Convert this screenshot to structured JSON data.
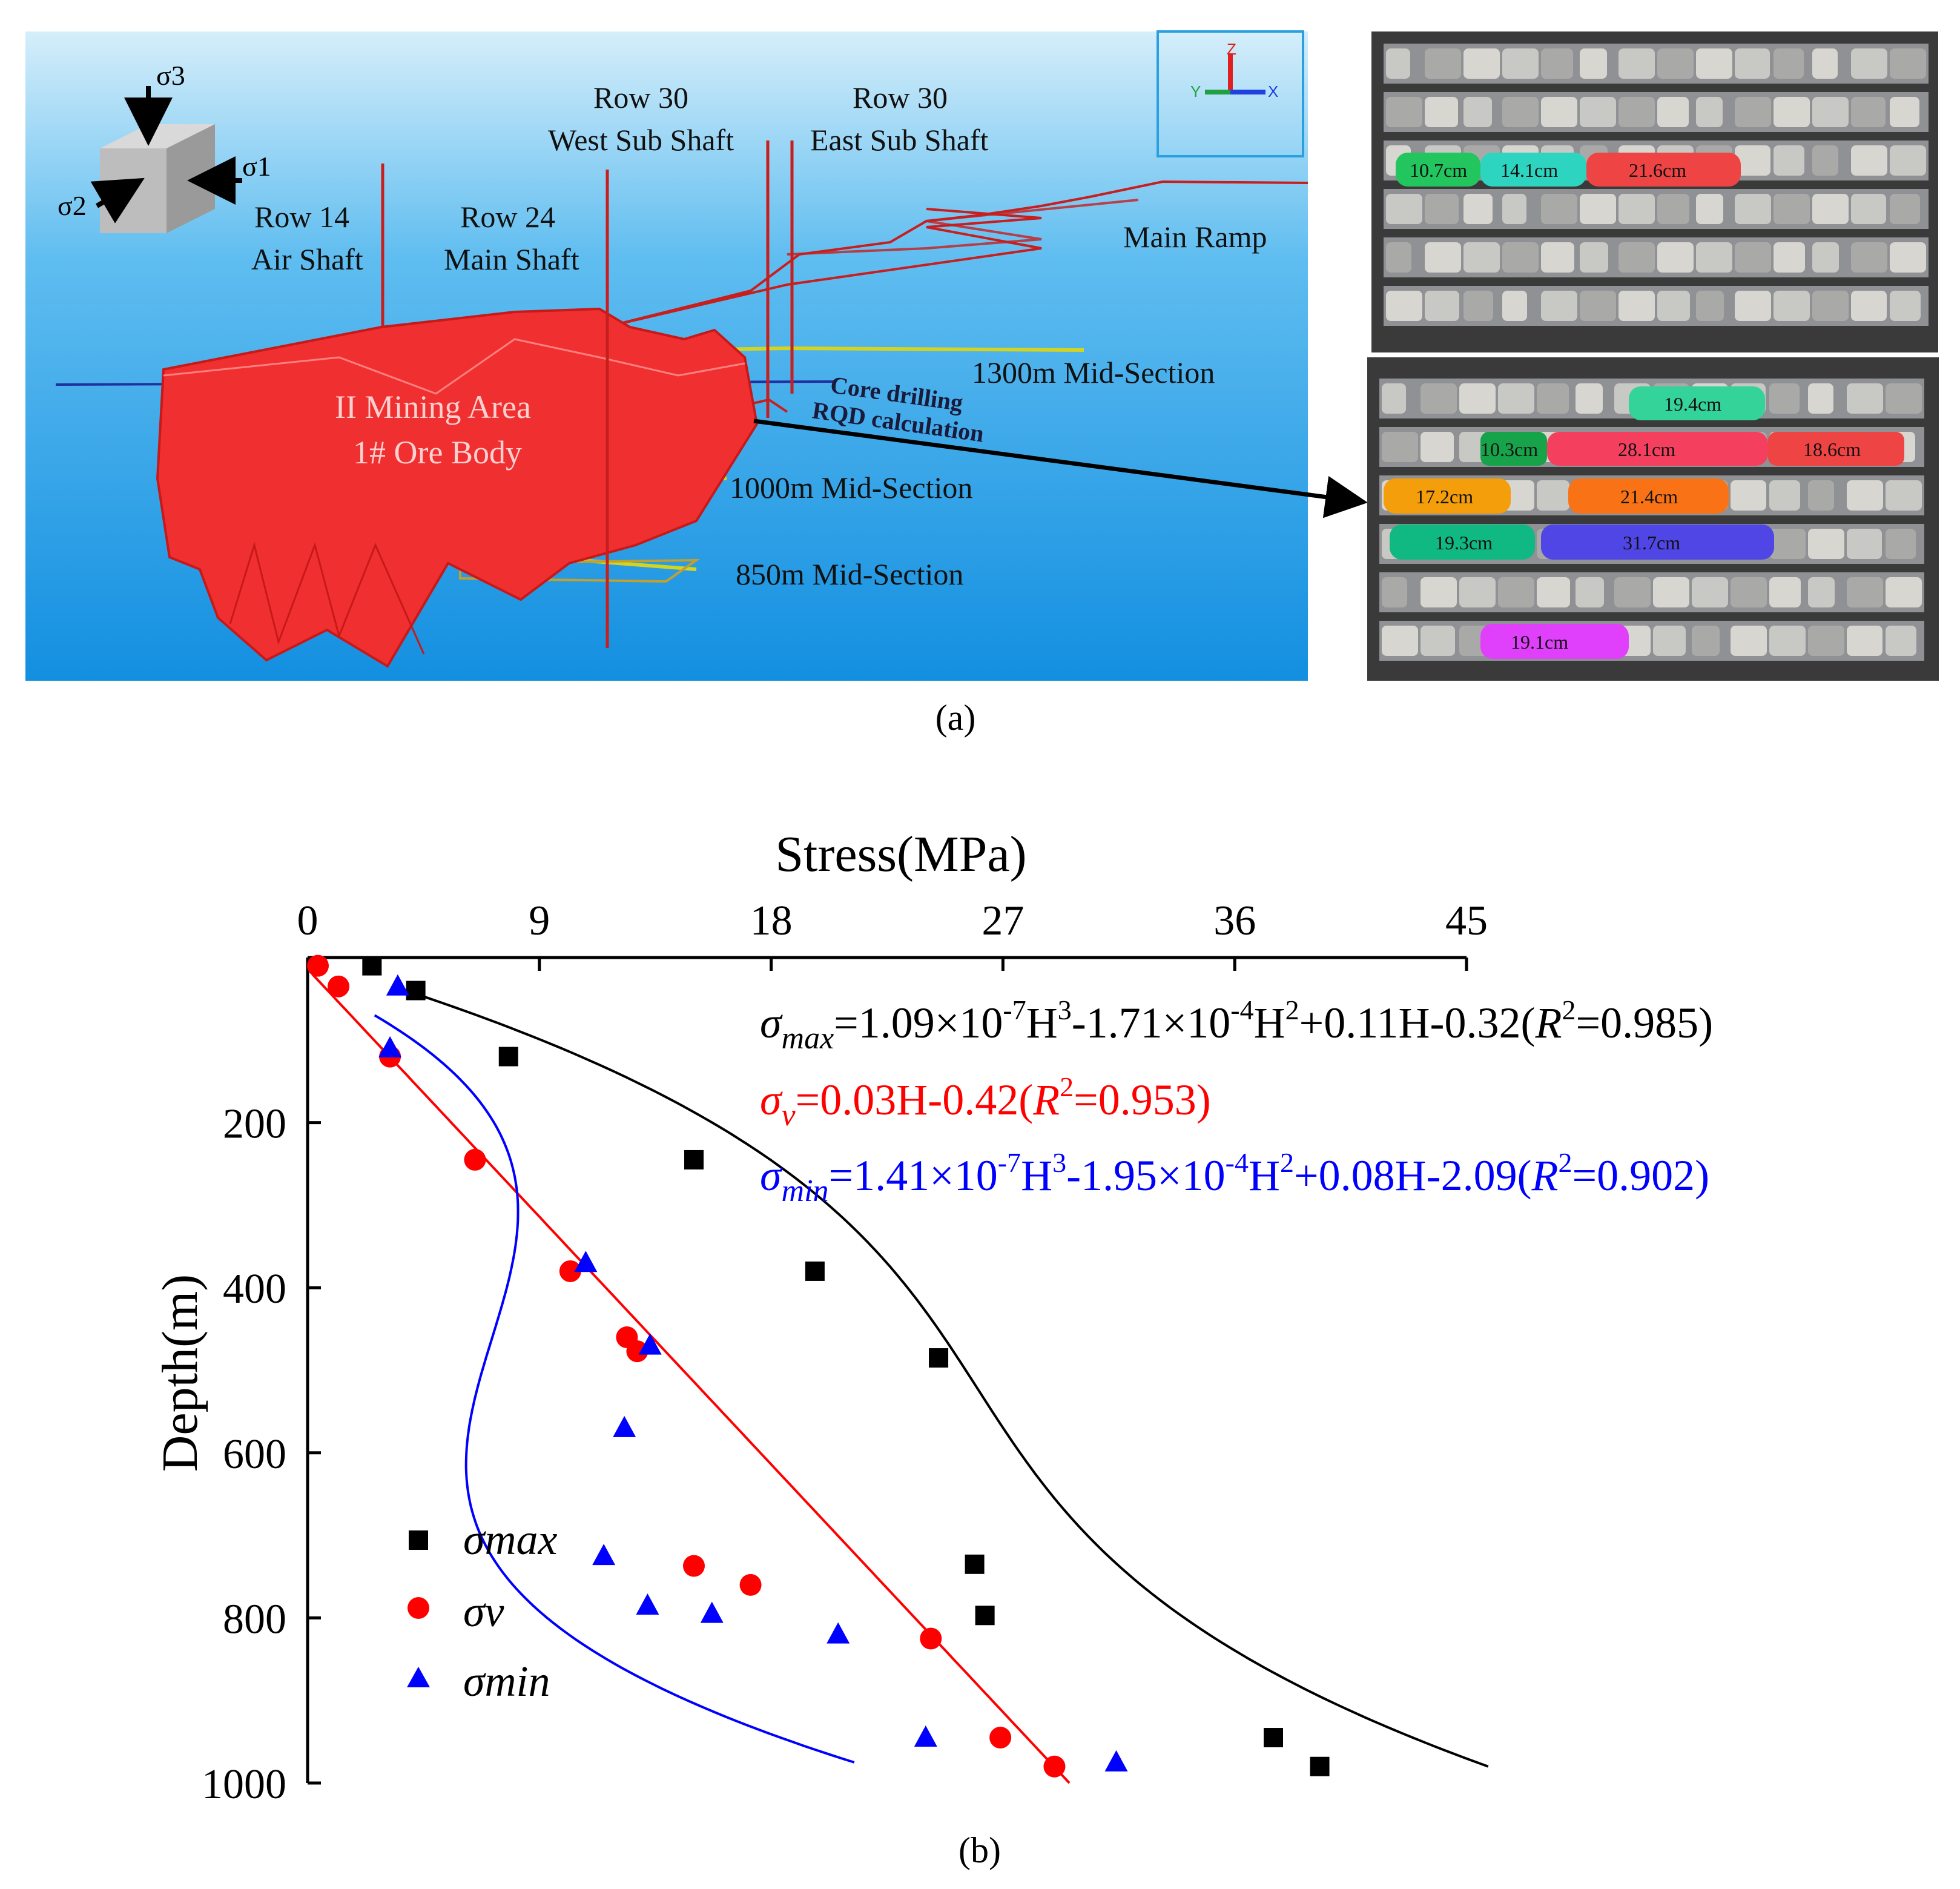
{
  "panel_a": {
    "caption": "(a)",
    "stress_cube": {
      "sigma1": "σ1",
      "sigma2": "σ2",
      "sigma3": "σ3"
    },
    "labels": {
      "row14": [
        "Row 14",
        "Air Shaft"
      ],
      "row24": [
        "Row 24",
        "Main Shaft"
      ],
      "row30w": [
        "Row 30",
        "West Sub Shaft"
      ],
      "row30e": [
        "Row 30",
        "East Sub Shaft"
      ],
      "main_ramp": "Main Ramp",
      "mid1300": "1300m Mid-Section",
      "mid1000": "1000m Mid-Section",
      "mid850": "850m Mid-Section",
      "ore_body": [
        "II Mining Area",
        "1# Ore Body"
      ],
      "core_drilling": "Core drilling",
      "rqd_calc": "RQD calculation"
    },
    "axes_widget": {
      "z": "Z",
      "y": "Y",
      "x": "X"
    },
    "core_box_top": [
      {
        "label": "10.7cm",
        "color": "#22c55e"
      },
      {
        "label": "14.1cm",
        "color": "#2dd4bf"
      },
      {
        "label": "21.6cm",
        "color": "#ef4444"
      }
    ],
    "core_box_bottom": [
      {
        "label": "19.4cm",
        "color": "#34d399"
      },
      {
        "label": "10.3cm",
        "color": "#16a34a"
      },
      {
        "label": "28.1cm",
        "color": "#f43f5e"
      },
      {
        "label": "18.6cm",
        "color": "#ef4444"
      },
      {
        "label": "17.2cm",
        "color": "#f59e0b"
      },
      {
        "label": "21.4cm",
        "color": "#f97316"
      },
      {
        "label": "19.3cm",
        "color": "#10b981"
      },
      {
        "label": "31.7cm",
        "color": "#4f46e5"
      },
      {
        "label": "19.1cm",
        "color": "#e040fb"
      }
    ]
  },
  "panel_b": {
    "caption": "(b)"
  },
  "colors": {
    "sky": "#1e9be8",
    "ore": "#f03030",
    "max": "#000000",
    "v": "#ff0000",
    "min": "#0000ff",
    "shaft": "#c81e1e",
    "box": "#3a3a3a"
  },
  "chart_data": {
    "type": "scatter",
    "title": "",
    "xlabel": "Stress(MPa)",
    "ylabel": "Depth(m)",
    "xlim": [
      0,
      45
    ],
    "ylim": [
      1000,
      0
    ],
    "x_ticks": [
      "0",
      "9",
      "18",
      "27",
      "36",
      "45"
    ],
    "y_ticks": [
      "200",
      "400",
      "600",
      "800",
      "1000"
    ],
    "legend_position": "bottom-left",
    "series": [
      {
        "name": "σmax",
        "marker": "square",
        "color": "#000000",
        "points": [
          [
            2.5,
            10
          ],
          [
            4.2,
            40
          ],
          [
            7.8,
            120
          ],
          [
            15.0,
            245
          ],
          [
            19.7,
            380
          ],
          [
            24.5,
            485
          ],
          [
            25.9,
            735
          ],
          [
            26.3,
            797
          ],
          [
            37.5,
            945
          ],
          [
            39.3,
            980
          ]
        ],
        "fit": {
          "a3": 1.09e-07,
          "a2": -0.000171,
          "a1": 0.11,
          "a0": -0.32,
          "h_range": [
            40,
            980
          ]
        }
      },
      {
        "name": "σv",
        "marker": "circle",
        "color": "#ff0000",
        "points": [
          [
            0.4,
            10
          ],
          [
            1.2,
            35
          ],
          [
            3.2,
            120
          ],
          [
            6.5,
            245
          ],
          [
            10.2,
            380
          ],
          [
            12.4,
            460
          ],
          [
            12.8,
            477
          ],
          [
            15.0,
            737
          ],
          [
            17.2,
            760
          ],
          [
            24.2,
            825
          ],
          [
            26.9,
            945
          ],
          [
            29.0,
            980
          ]
        ],
        "fit": {
          "a3": 0,
          "a2": 0,
          "a1": 0.03,
          "a0": -0.42,
          "h_range": [
            20,
            1000
          ]
        }
      },
      {
        "name": "σmin",
        "marker": "triangle",
        "color": "#0000ff",
        "points": [
          [
            3.5,
            35
          ],
          [
            3.2,
            110
          ],
          [
            10.8,
            370
          ],
          [
            13.3,
            470
          ],
          [
            12.3,
            570
          ],
          [
            11.5,
            725
          ],
          [
            13.2,
            785
          ],
          [
            15.7,
            795
          ],
          [
            20.6,
            820
          ],
          [
            24.0,
            945
          ],
          [
            31.4,
            975
          ]
        ],
        "fit": {
          "a3": 1.41e-07,
          "a2": -0.000195,
          "a1": 0.08,
          "a0": -2.09,
          "h_range": [
            70,
            975
          ]
        }
      }
    ],
    "equations": [
      {
        "sym": "σ",
        "sub": "max",
        "text": "=1.09×10",
        "e1": "-7",
        "t2": "H",
        "e2": "3",
        "t3": "-1.71×10",
        "e3": "-4",
        "t4": "H",
        "e4": "2",
        "t5": "+0.11H-0.32(",
        "r": "R",
        "r_exp": "2",
        "t6": "=0.985)"
      },
      {
        "sym": "σ",
        "sub": "v",
        "text": "=0.03H-0.42(",
        "r": "R",
        "r_exp": "2",
        "t6": "=0.953)"
      },
      {
        "sym": "σ",
        "sub": "min",
        "text": "=1.41×10",
        "e1": "-7",
        "t2": "H",
        "e2": "3",
        "t3": "-1.95×10",
        "e3": "-4",
        "t4": "H",
        "e4": "2",
        "t5": "+0.08H-2.09(",
        "r": "R",
        "r_exp": "2",
        "t6": "=0.902)"
      }
    ]
  }
}
